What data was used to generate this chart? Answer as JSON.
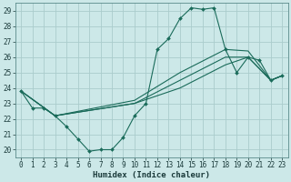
{
  "xlabel": "Humidex (Indice chaleur)",
  "bg_color": "#cce8e8",
  "grid_color": "#aacccc",
  "line_color": "#1a6b5a",
  "xlim": [
    -0.5,
    23.5
  ],
  "ylim": [
    19.5,
    29.5
  ],
  "xticks": [
    0,
    1,
    2,
    3,
    4,
    5,
    6,
    7,
    8,
    9,
    10,
    11,
    12,
    13,
    14,
    15,
    16,
    17,
    18,
    19,
    20,
    21,
    22,
    23
  ],
  "yticks": [
    20,
    21,
    22,
    23,
    24,
    25,
    26,
    27,
    28,
    29
  ],
  "main_line": {
    "x": [
      0,
      1,
      2,
      3,
      4,
      5,
      6,
      7,
      8,
      9,
      10,
      11,
      12,
      13,
      14,
      15,
      16,
      17,
      18,
      19,
      20,
      21,
      22,
      23
    ],
    "y": [
      23.8,
      22.7,
      22.7,
      22.2,
      21.5,
      20.7,
      19.9,
      20.0,
      20.0,
      20.8,
      22.2,
      23.0,
      26.5,
      27.2,
      28.5,
      29.2,
      29.1,
      29.2,
      26.5,
      25.0,
      26.0,
      25.8,
      24.5,
      24.8
    ]
  },
  "extra_lines": [
    {
      "x": [
        0,
        3,
        10,
        14,
        18,
        20,
        22,
        23
      ],
      "y": [
        23.8,
        22.2,
        23.0,
        24.0,
        25.5,
        26.0,
        24.5,
        24.8
      ]
    },
    {
      "x": [
        0,
        3,
        10,
        14,
        18,
        20,
        22,
        23
      ],
      "y": [
        23.8,
        22.2,
        23.0,
        24.5,
        26.0,
        26.0,
        24.5,
        24.8
      ]
    },
    {
      "x": [
        0,
        3,
        10,
        14,
        18,
        20,
        22,
        23
      ],
      "y": [
        23.8,
        22.2,
        23.2,
        25.0,
        26.5,
        26.4,
        24.5,
        24.8
      ]
    }
  ]
}
